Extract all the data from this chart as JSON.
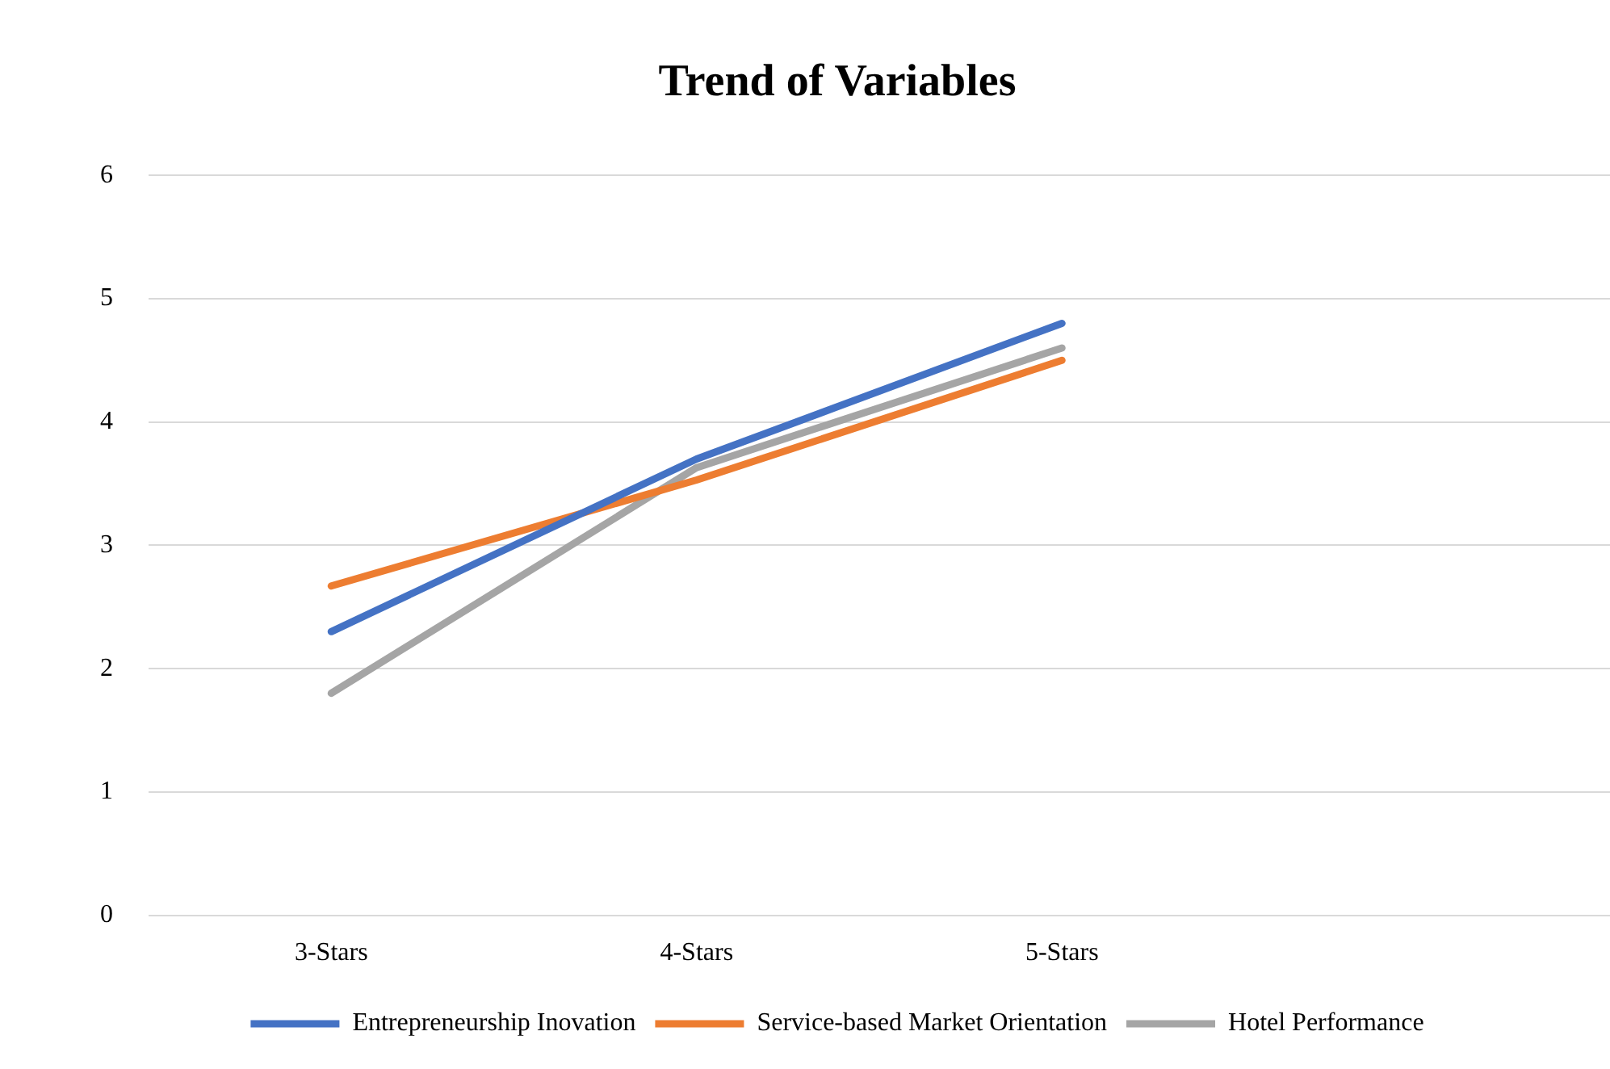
{
  "chart_data": {
    "type": "line",
    "title": "Trend of Variables",
    "categories": [
      "3-Stars",
      "4-Stars",
      "5-Stars",
      null
    ],
    "series": [
      {
        "name": "Entrepreneurship Inovation",
        "color": "#4472c4",
        "values": [
          2.3,
          3.7,
          4.8,
          null
        ]
      },
      {
        "name": "Service-based Market Orientation",
        "color": "#ed7d31",
        "values": [
          2.67,
          3.53,
          4.5,
          null
        ]
      },
      {
        "name": "Hotel Performance",
        "color": "#a5a5a5",
        "values": [
          1.8,
          3.63,
          4.6,
          null
        ]
      }
    ],
    "ylim": [
      0,
      6
    ],
    "yticks": [
      0,
      1,
      2,
      3,
      4,
      5,
      6
    ],
    "grid": "y",
    "legend": "bottom",
    "marker": "none",
    "line_style": "solid"
  }
}
